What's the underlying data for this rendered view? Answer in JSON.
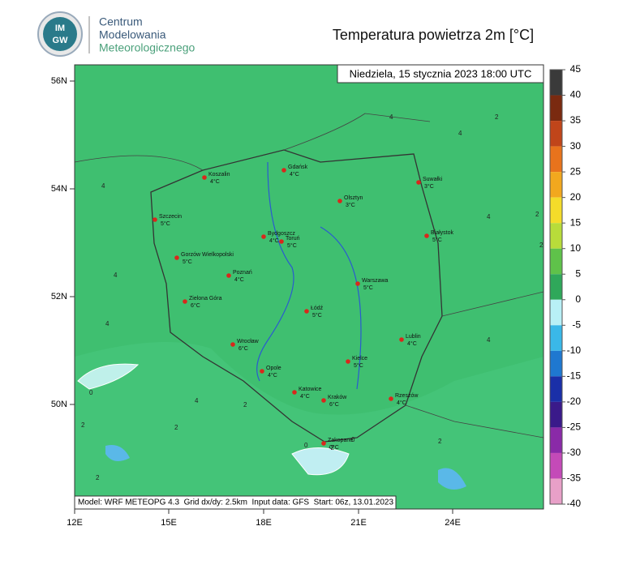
{
  "logo": {
    "badge_top": "IM",
    "badge_bottom": "GW",
    "lines": [
      "Centrum",
      "Modelowania",
      "Meteorologicznego"
    ]
  },
  "title": "Temperatura powietrza 2m [°C]",
  "timestamp": "Niedziela, 15 stycznia 2023 18:00 UTC",
  "footer": "Model: WRF METEOPG 4.3  Grid dx/dy: 2.5km  Input data: GFS  Start: 06z, 13.01.2023",
  "axes": {
    "x": [
      "12E",
      "15E",
      "18E",
      "21E",
      "24E"
    ],
    "y": [
      "56N",
      "54N",
      "52N",
      "50N"
    ]
  },
  "colorbar": {
    "labels": [
      45,
      40,
      35,
      30,
      25,
      20,
      15,
      10,
      5,
      0,
      -5,
      -10,
      -15,
      -20,
      -25,
      -30,
      -35,
      -40
    ],
    "colors": [
      "#3a3a3a",
      "#7a2a10",
      "#c0451a",
      "#e8731c",
      "#f2a81e",
      "#f4dc2a",
      "#b8dc3a",
      "#5fc24a",
      "#2fa85a",
      "#b8f0f6",
      "#3ab8e8",
      "#1f78d0",
      "#1a2fa8",
      "#3a1a8a",
      "#8a2aa8",
      "#c44ab8",
      "#e8a0c8"
    ]
  },
  "cities": [
    {
      "name": "Koszalin",
      "temp": "4°C"
    },
    {
      "name": "Gdańsk",
      "temp": "4°C"
    },
    {
      "name": "Suwałki",
      "temp": "3°C"
    },
    {
      "name": "Olsztyn",
      "temp": "3°C"
    },
    {
      "name": "Szczecin",
      "temp": "5°C"
    },
    {
      "name": "Bydgoszcz",
      "temp": "4°C"
    },
    {
      "name": "Toruń",
      "temp": "5°C"
    },
    {
      "name": "Białystok",
      "temp": "5°C"
    },
    {
      "name": "Gorzów Wielkopolski",
      "temp": "5°C"
    },
    {
      "name": "Poznań",
      "temp": "4°C"
    },
    {
      "name": "Warszawa",
      "temp": "5°C"
    },
    {
      "name": "Zielona Góra",
      "temp": "6°C"
    },
    {
      "name": "Łódź",
      "temp": "5°C"
    },
    {
      "name": "Lublin",
      "temp": "4°C"
    },
    {
      "name": "Wrocław",
      "temp": "6°C"
    },
    {
      "name": "Kielce",
      "temp": "5°C"
    },
    {
      "name": "Opole",
      "temp": "4°C"
    },
    {
      "name": "Katowice",
      "temp": "4°C"
    },
    {
      "name": "Rzeszów",
      "temp": "4°C"
    },
    {
      "name": "Kraków",
      "temp": "6°C"
    },
    {
      "name": "Zakopane",
      "temp": "0°C"
    }
  ],
  "contour_labels": [
    "4",
    "2",
    "4",
    "4",
    "4",
    "2",
    "2",
    "4",
    "0",
    "2",
    "2",
    "4",
    "2",
    "0",
    "-2",
    "0",
    "2",
    "2",
    "4",
    "4"
  ]
}
